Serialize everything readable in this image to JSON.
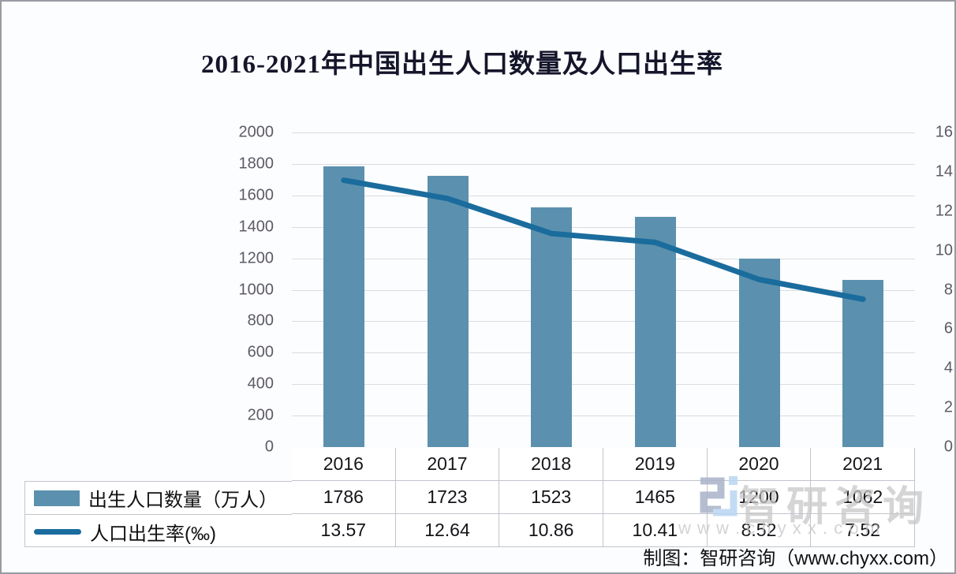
{
  "page": {
    "footer_credit": "制图：智研咨询（www.chyxx.com）",
    "watermark": {
      "brand": "智研咨询",
      "url_spaced": "w w w . c h y x x . c o m",
      "logo_icon": "zhiyan-logo",
      "brand_color": "#c7c7c9",
      "logo_blue": "#b9d6f3",
      "logo_gray_blue": "#a9b3c9"
    }
  },
  "chart_data": {
    "type": "combo-bar-line",
    "title": "2016-2021年中国出生人口数量及人口出生率",
    "categories": [
      "2016",
      "2017",
      "2018",
      "2019",
      "2020",
      "2021"
    ],
    "series": [
      {
        "name": "出生人口数量（万人）",
        "chart": "bar",
        "axis": "left",
        "color": "#5b91ae",
        "values": [
          1786,
          1723,
          1523,
          1465,
          1200,
          1062
        ]
      },
      {
        "name": "人口出生率(‰)",
        "chart": "line",
        "axis": "right",
        "color": "#1a6c9d",
        "values": [
          13.57,
          12.64,
          10.86,
          10.41,
          8.52,
          7.52
        ]
      }
    ],
    "left_axis": {
      "min": 0,
      "max": 2000,
      "ticks": [
        0,
        200,
        400,
        600,
        800,
        1000,
        1200,
        1400,
        1600,
        1800,
        2000
      ]
    },
    "right_axis": {
      "min": 0,
      "max": 16,
      "ticks": [
        0,
        2,
        4,
        6,
        8,
        10,
        12,
        14,
        16
      ]
    },
    "gridlines": "horizontal",
    "gridline_color": "#d9dce2",
    "legend_position": "table-left",
    "data_table_shown": true
  }
}
